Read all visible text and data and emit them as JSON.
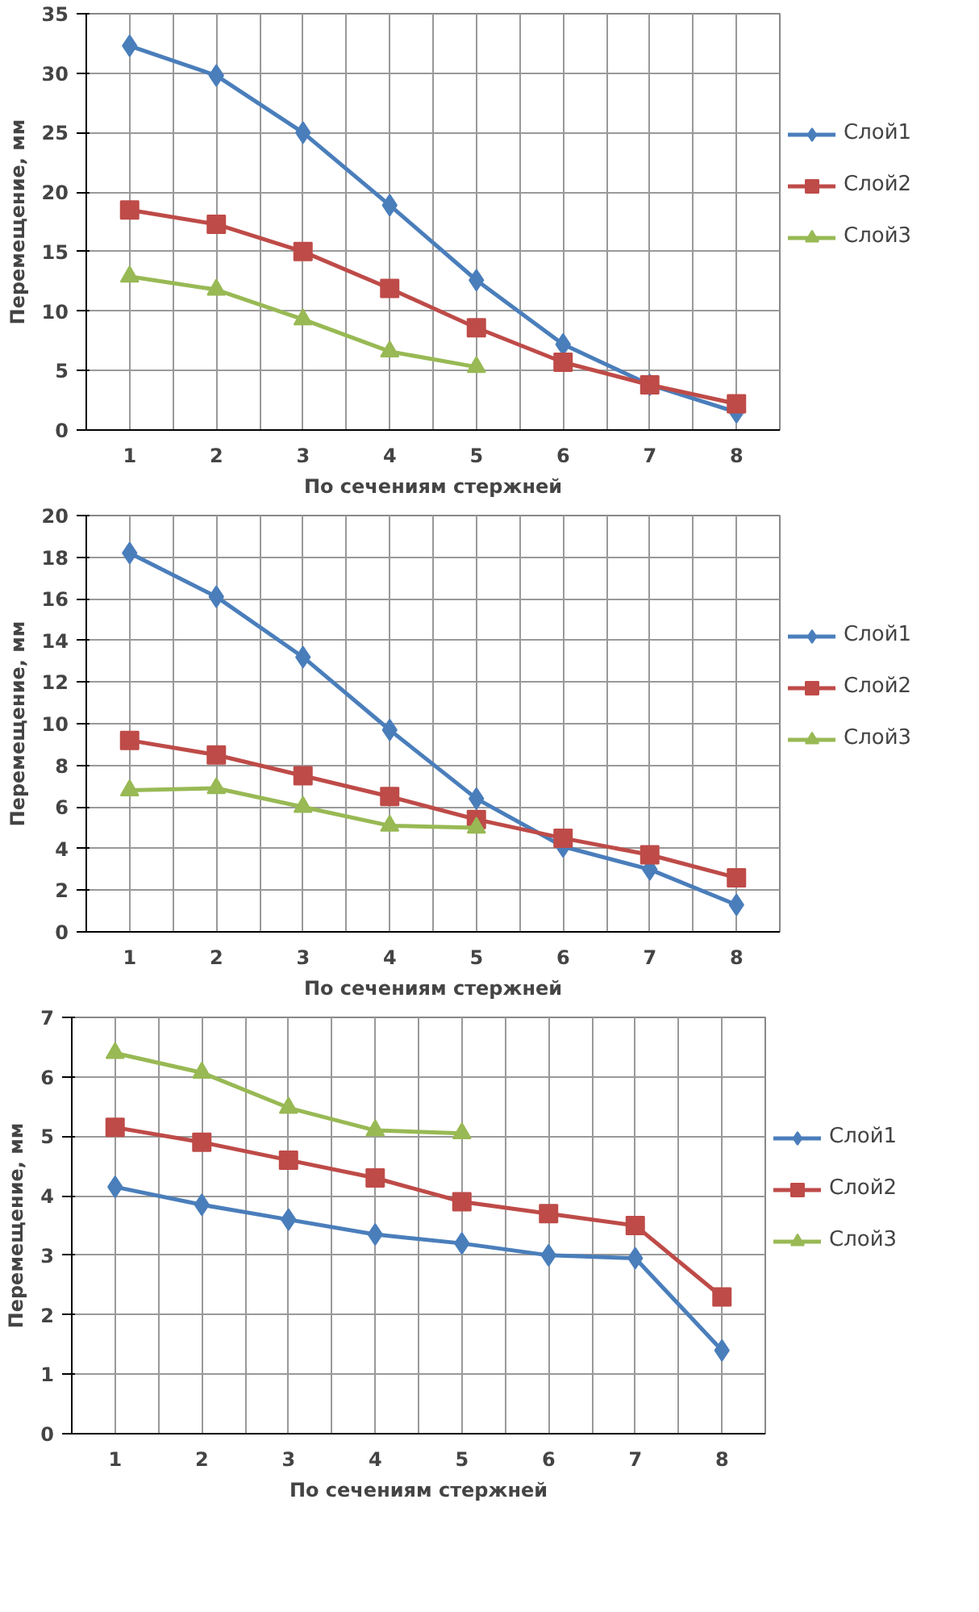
{
  "chart_data": [
    {
      "type": "line",
      "xlabel": "По сечениям стержней",
      "ylabel": "Перемещение, мм",
      "categories": [
        "1",
        "2",
        "3",
        "4",
        "5",
        "6",
        "7",
        "8"
      ],
      "ylim": [
        0,
        35
      ],
      "yticks": [
        0,
        5,
        10,
        15,
        20,
        25,
        30,
        35
      ],
      "grid": true,
      "legend": "right",
      "series": [
        {
          "name": "Слой1",
          "color": "#4a7ebb",
          "marker": "diamond",
          "values": [
            32.3,
            29.8,
            25.0,
            18.9,
            12.6,
            7.2,
            3.8,
            1.5
          ]
        },
        {
          "name": "Слой2",
          "color": "#be4b48",
          "marker": "square",
          "values": [
            18.5,
            17.3,
            15.0,
            11.9,
            8.6,
            5.7,
            3.8,
            2.2
          ]
        },
        {
          "name": "Слой3",
          "color": "#98b954",
          "marker": "triangle",
          "values": [
            12.9,
            11.8,
            9.3,
            6.6,
            5.3,
            null,
            null,
            null
          ]
        }
      ]
    },
    {
      "type": "line",
      "xlabel": "По сечениям стержней",
      "ylabel": "Перемещение, мм",
      "categories": [
        "1",
        "2",
        "3",
        "4",
        "5",
        "6",
        "7",
        "8"
      ],
      "ylim": [
        0,
        20
      ],
      "yticks": [
        0,
        2,
        4,
        6,
        8,
        10,
        12,
        14,
        16,
        18,
        20
      ],
      "grid": true,
      "legend": "right",
      "series": [
        {
          "name": "Слой1",
          "color": "#4a7ebb",
          "marker": "diamond",
          "values": [
            18.2,
            16.1,
            13.2,
            9.7,
            6.4,
            4.1,
            3.0,
            1.3
          ]
        },
        {
          "name": "Слой2",
          "color": "#be4b48",
          "marker": "square",
          "values": [
            9.2,
            8.5,
            7.5,
            6.5,
            5.4,
            4.5,
            3.7,
            2.6
          ]
        },
        {
          "name": "Слой3",
          "color": "#98b954",
          "marker": "triangle",
          "values": [
            6.8,
            6.9,
            6.0,
            5.1,
            5.0,
            null,
            null,
            null
          ]
        }
      ]
    },
    {
      "type": "line",
      "xlabel": "По сечениям стержней",
      "ylabel": "Перемещение, мм",
      "categories": [
        "1",
        "2",
        "3",
        "4",
        "5",
        "6",
        "7",
        "8"
      ],
      "ylim": [
        0,
        7
      ],
      "yticks": [
        0,
        1,
        2,
        3,
        4,
        5,
        6,
        7
      ],
      "grid": true,
      "legend": "right",
      "series": [
        {
          "name": "Слой1",
          "color": "#4a7ebb",
          "marker": "diamond",
          "values": [
            4.15,
            3.85,
            3.6,
            3.35,
            3.2,
            3.0,
            2.95,
            1.4
          ]
        },
        {
          "name": "Слой2",
          "color": "#be4b48",
          "marker": "square",
          "values": [
            5.15,
            4.9,
            4.6,
            4.3,
            3.9,
            3.7,
            3.5,
            2.3
          ]
        },
        {
          "name": "Слой3",
          "color": "#98b954",
          "marker": "triangle",
          "values": [
            6.4,
            6.07,
            5.48,
            5.1,
            5.05,
            null,
            null,
            null
          ]
        }
      ]
    }
  ]
}
